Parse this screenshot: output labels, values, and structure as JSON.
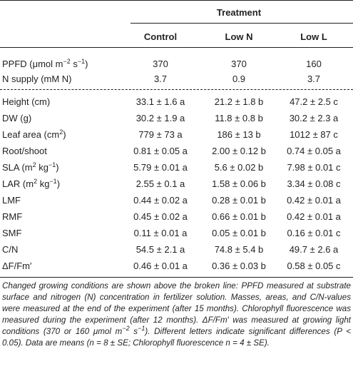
{
  "table": {
    "group_header": "Treatment",
    "columns": [
      "Control",
      "Low N",
      "Low L"
    ],
    "conditions_rows": [
      {
        "label": [
          {
            "text": "PPFD (μmol m"
          },
          {
            "text": "−2",
            "sup": true
          },
          {
            "text": " s"
          },
          {
            "text": "−1",
            "sup": true
          },
          {
            "text": ")"
          }
        ],
        "cells": [
          "370",
          "370",
          "160"
        ]
      },
      {
        "label": [
          {
            "text": "N supply (mM N)"
          }
        ],
        "cells": [
          "3.7",
          "0.9",
          "3.7"
        ]
      }
    ],
    "measured_rows": [
      {
        "label": [
          {
            "text": "Height (cm)"
          }
        ],
        "cells": [
          "33.1 ± 1.6 a",
          "21.2 ± 1.8 b",
          "47.2 ± 2.5 c"
        ]
      },
      {
        "label": [
          {
            "text": "DW (g)"
          }
        ],
        "cells": [
          "30.2 ± 1.9 a",
          "11.8 ± 0.8 b",
          "30.2 ± 2.3 a"
        ]
      },
      {
        "label": [
          {
            "text": "Leaf area (cm"
          },
          {
            "text": "2",
            "sup": true
          },
          {
            "text": ")"
          }
        ],
        "cells": [
          "779 ± 73 a",
          "186 ± 13 b",
          "1012 ± 87 c"
        ]
      },
      {
        "label": [
          {
            "text": "Root/shoot"
          }
        ],
        "cells": [
          "0.81 ± 0.05 a",
          "2.00 ± 0.12 b",
          "0.74 ± 0.05 a"
        ]
      },
      {
        "label": [
          {
            "text": "SLA (m"
          },
          {
            "text": "2",
            "sup": true
          },
          {
            "text": " kg"
          },
          {
            "text": "−1",
            "sup": true
          },
          {
            "text": ")"
          }
        ],
        "cells": [
          "5.79 ± 0.01 a",
          "5.6 ± 0.02 b",
          "7.98 ± 0.01 c"
        ]
      },
      {
        "label": [
          {
            "text": "LAR (m"
          },
          {
            "text": "2",
            "sup": true
          },
          {
            "text": " kg"
          },
          {
            "text": "−1",
            "sup": true
          },
          {
            "text": ")"
          }
        ],
        "cells": [
          "2.55 ± 0.1 a",
          "1.58 ± 0.06 b",
          "3.34 ± 0.08 c"
        ]
      },
      {
        "label": [
          {
            "text": "LMF"
          }
        ],
        "cells": [
          "0.44 ± 0.02 a",
          "0.28 ± 0.01 b",
          "0.42 ± 0.01 a"
        ]
      },
      {
        "label": [
          {
            "text": "RMF"
          }
        ],
        "cells": [
          "0.45 ± 0.02 a",
          "0.66 ± 0.01 b",
          "0.42 ± 0.01 a"
        ]
      },
      {
        "label": [
          {
            "text": "SMF"
          }
        ],
        "cells": [
          "0.11 ± 0.01 a",
          "0.05 ± 0.01 b",
          "0.16 ± 0.01 c"
        ]
      },
      {
        "label": [
          {
            "text": "C/N"
          }
        ],
        "cells": [
          "54.5 ± 2.1 a",
          "74.8 ± 5.4 b",
          "49.7 ± 2.6 a"
        ]
      },
      {
        "label": [
          {
            "text": "ΔF/Fm′"
          }
        ],
        "cells": [
          "0.46 ± 0.01 a",
          "0.36 ± 0.03 b",
          "0.58 ± 0.05 c"
        ]
      }
    ],
    "caption": [
      {
        "text": "Changed growing conditions are shown above the broken line: PPFD measured at substrate surface and nitrogen (N) concentration in fertilizer solution. Masses, areas, and C/N-values were measured at the end of the experiment (after 15 months). Chlorophyll fluorescence was measured during the experiment (after 12 months). ΔF/Fm′ was measured at growing light conditions (370 or 160 μmol m"
      },
      {
        "text": "−2",
        "sup": true
      },
      {
        "text": " s"
      },
      {
        "text": "−1",
        "sup": true
      },
      {
        "text": "). Different letters indicate significant differences (P < 0.05). Data are means (n = 8 ± SE; Chlorophyll fluorescence n = 4 ± SE)."
      }
    ]
  }
}
